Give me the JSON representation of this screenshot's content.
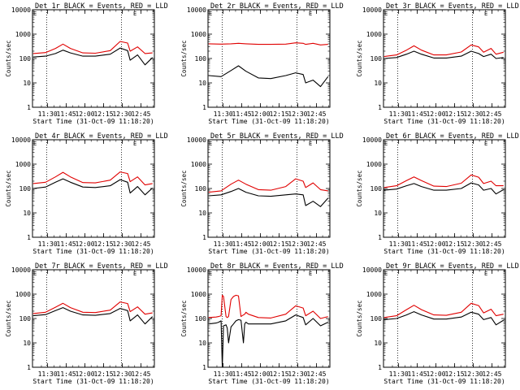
{
  "page": {
    "background": "#ffffff"
  },
  "colors": {
    "events": "#000000",
    "lld": "#e00000",
    "axis": "#000000"
  },
  "common": {
    "ylabel": "Counts/sec",
    "xlabel": "Start Time (31-Oct-09 11:18:20)",
    "x_tick_labels": [
      "11:30",
      "11:45",
      "12:00",
      "12:15",
      "12:30",
      "12:45"
    ],
    "x_tick_minutes": [
      11.67,
      26.67,
      41.67,
      56.67,
      71.67,
      86.67
    ],
    "xlim_minutes": [
      -0.5,
      97.5
    ],
    "y_scale": "log",
    "y_tick_labels": [
      "1",
      "10",
      "100",
      "1000",
      "10000"
    ],
    "y_tick_values": [
      1,
      10,
      100,
      1000,
      10000
    ],
    "ylim": [
      1,
      10000
    ],
    "dotted_vertical_minutes": [
      11.0,
      71.0
    ],
    "corner_markers": {
      "left": "E",
      "right": "E"
    }
  },
  "chart_data": [
    {
      "type": "line",
      "title": "Det 1r BLACK = Events, RED = LLD",
      "x_minutes": [
        0,
        10,
        18,
        24,
        30,
        40,
        50,
        62,
        70,
        76,
        78,
        84,
        90,
        96
      ],
      "series": [
        {
          "name": "Events",
          "color": "#000000",
          "values": [
            115,
            125,
            160,
            220,
            170,
            125,
            125,
            150,
            270,
            210,
            85,
            140,
            55,
            110
          ]
        },
        {
          "name": "LLD",
          "color": "#e00000",
          "values": [
            160,
            175,
            260,
            390,
            260,
            170,
            165,
            210,
            500,
            430,
            200,
            300,
            160,
            170
          ]
        }
      ]
    },
    {
      "type": "line",
      "title": "Det 2r BLACK = Events, RED = LLD",
      "x_minutes": [
        0,
        10,
        18,
        24,
        30,
        40,
        50,
        62,
        70,
        76,
        78,
        84,
        90,
        96
      ],
      "series": [
        {
          "name": "Events",
          "color": "#000000",
          "values": [
            20,
            18,
            32,
            50,
            30,
            16,
            15,
            20,
            26,
            22,
            10,
            13,
            7,
            18
          ]
        },
        {
          "name": "LLD",
          "color": "#e00000",
          "values": [
            400,
            390,
            400,
            420,
            400,
            380,
            380,
            390,
            440,
            420,
            380,
            420,
            360,
            380
          ]
        }
      ]
    },
    {
      "type": "line",
      "title": "Det 3r BLACK = Events, RED = LLD",
      "x_minutes": [
        0,
        10,
        18,
        24,
        30,
        40,
        50,
        62,
        70,
        76,
        80,
        86,
        90,
        96
      ],
      "series": [
        {
          "name": "Events",
          "color": "#000000",
          "values": [
            100,
            110,
            150,
            200,
            150,
            105,
            105,
            125,
            200,
            160,
            120,
            150,
            100,
            110
          ]
        },
        {
          "name": "LLD",
          "color": "#e00000",
          "values": [
            120,
            140,
            220,
            330,
            220,
            140,
            140,
            185,
            360,
            300,
            180,
            260,
            150,
            180
          ]
        }
      ]
    },
    {
      "type": "line",
      "title": "Det 4r BLACK = Events, RED = LLD",
      "x_minutes": [
        0,
        10,
        18,
        24,
        30,
        40,
        50,
        62,
        70,
        76,
        78,
        84,
        90,
        96
      ],
      "series": [
        {
          "name": "Events",
          "color": "#000000",
          "values": [
            100,
            115,
            180,
            250,
            180,
            115,
            110,
            130,
            230,
            180,
            65,
            120,
            55,
            105
          ]
        },
        {
          "name": "LLD",
          "color": "#e00000",
          "values": [
            160,
            180,
            300,
            460,
            300,
            175,
            170,
            220,
            480,
            410,
            190,
            300,
            140,
            160
          ]
        }
      ]
    },
    {
      "type": "line",
      "title": "Det 5r BLACK = Events, RED = LLD",
      "x_minutes": [
        0,
        10,
        18,
        24,
        30,
        40,
        50,
        62,
        70,
        76,
        78,
        84,
        90,
        96
      ],
      "series": [
        {
          "name": "Events",
          "color": "#000000",
          "values": [
            50,
            55,
            75,
            100,
            70,
            50,
            48,
            55,
            60,
            55,
            20,
            30,
            18,
            40
          ]
        },
        {
          "name": "LLD",
          "color": "#e00000",
          "values": [
            70,
            80,
            150,
            220,
            150,
            90,
            85,
            120,
            250,
            200,
            110,
            170,
            90,
            80
          ]
        }
      ]
    },
    {
      "type": "line",
      "title": "Det 6r BLACK = Events, RED = LLD",
      "x_minutes": [
        0,
        10,
        18,
        24,
        30,
        40,
        50,
        62,
        70,
        76,
        80,
        86,
        90,
        96
      ],
      "series": [
        {
          "name": "Events",
          "color": "#000000",
          "values": [
            85,
            95,
            130,
            160,
            120,
            85,
            85,
            100,
            170,
            140,
            85,
            100,
            60,
            90
          ]
        },
        {
          "name": "LLD",
          "color": "#e00000",
          "values": [
            110,
            130,
            210,
            300,
            210,
            125,
            120,
            165,
            360,
            290,
            160,
            200,
            130,
            130
          ]
        }
      ]
    },
    {
      "type": "line",
      "title": "Det 7r BLACK = Events, RED = LLD",
      "x_minutes": [
        0,
        10,
        18,
        24,
        30,
        40,
        50,
        62,
        70,
        76,
        78,
        84,
        90,
        96
      ],
      "series": [
        {
          "name": "Events",
          "color": "#000000",
          "values": [
            130,
            145,
            210,
            280,
            200,
            140,
            135,
            160,
            260,
            210,
            80,
            140,
            60,
            120
          ]
        },
        {
          "name": "LLD",
          "color": "#e00000",
          "values": [
            160,
            180,
            290,
            420,
            280,
            180,
            175,
            220,
            480,
            410,
            190,
            300,
            150,
            170
          ]
        }
      ]
    },
    {
      "type": "line",
      "title": "Det 8r BLACK = Events, RED = LLD",
      "x_minutes": [
        0,
        6,
        8,
        10,
        11,
        12,
        14,
        15,
        16,
        18,
        20,
        22,
        24,
        26,
        28,
        29,
        30,
        32,
        40,
        50,
        62,
        70,
        76,
        78,
        84,
        90,
        96
      ],
      "series": [
        {
          "name": "Events",
          "color": "#000000",
          "values": [
            60,
            65,
            70,
            80,
            1,
            50,
            55,
            40,
            10,
            45,
            60,
            80,
            90,
            85,
            10,
            60,
            70,
            60,
            60,
            60,
            80,
            140,
            110,
            55,
            100,
            50,
            70
          ]
        },
        {
          "name": "LLD",
          "color": "#e00000",
          "values": [
            110,
            115,
            120,
            130,
            900,
            800,
            120,
            110,
            120,
            600,
            800,
            900,
            850,
            120,
            140,
            150,
            180,
            150,
            110,
            105,
            150,
            330,
            270,
            130,
            200,
            100,
            120
          ]
        }
      ]
    },
    {
      "type": "line",
      "title": "Det 9r BLACK = Events, RED = LLD",
      "x_minutes": [
        0,
        10,
        18,
        24,
        30,
        40,
        50,
        62,
        70,
        76,
        80,
        86,
        90,
        96
      ],
      "series": [
        {
          "name": "Events",
          "color": "#000000",
          "values": [
            90,
            100,
            140,
            190,
            140,
            95,
            95,
            115,
            180,
            150,
            90,
            110,
            55,
            85
          ]
        },
        {
          "name": "LLD",
          "color": "#e00000",
          "values": [
            110,
            130,
            230,
            350,
            230,
            140,
            135,
            180,
            420,
            340,
            170,
            240,
            130,
            150
          ]
        }
      ]
    }
  ]
}
